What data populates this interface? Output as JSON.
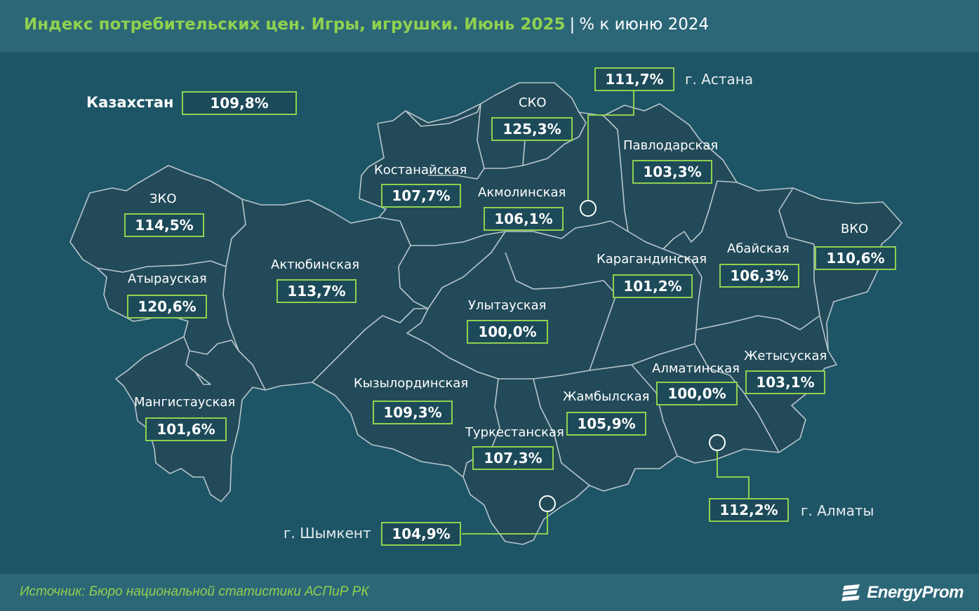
{
  "header": {
    "title": "Индекс потребительских цен. Игры, игрушки. Июнь 2025",
    "separator": "|",
    "unit": "% к июню 2024"
  },
  "country": {
    "label": "Казахстан",
    "value": "109,8%"
  },
  "regions": {
    "zko": {
      "label": "ЗКО",
      "value": "114,5%"
    },
    "atyrau": {
      "label": "Атырауская",
      "value": "120,6%"
    },
    "mangistau": {
      "label": "Мангистауская",
      "value": "101,6%"
    },
    "aktobe": {
      "label": "Актюбинская",
      "value": "113,7%"
    },
    "kostanay": {
      "label": "Костанайская",
      "value": "107,7%"
    },
    "sko": {
      "label": "СКО",
      "value": "125,3%"
    },
    "akmola": {
      "label": "Акмолинская",
      "value": "106,1%"
    },
    "pavlodar": {
      "label": "Павлодарская",
      "value": "103,3%"
    },
    "vko": {
      "label": "ВКО",
      "value": "110,6%"
    },
    "abay": {
      "label": "Абайская",
      "value": "106,3%"
    },
    "karaganda": {
      "label": "Карагандинская",
      "value": "101,2%"
    },
    "ulytau": {
      "label": "Улытауская",
      "value": "100,0%"
    },
    "kyzylorda": {
      "label": "Кызылординская",
      "value": "109,3%"
    },
    "turkestan": {
      "label": "Туркестанская",
      "value": "107,3%"
    },
    "zhambyl": {
      "label": "Жамбылская",
      "value": "105,9%"
    },
    "almaty_obl": {
      "label": "Алматинская",
      "value": "100,0%"
    },
    "zhetysu": {
      "label": "Жетысуская",
      "value": "103,1%"
    }
  },
  "cities": {
    "astana": {
      "label": "г. Астана",
      "value": "111,7%"
    },
    "almaty": {
      "label": "г. Алматы",
      "value": "112,2%"
    },
    "shymkent": {
      "label": "г. Шымкент",
      "value": "104,9%"
    }
  },
  "footer": {
    "source": "Источник: Бюро национальной статистики АСПиР РК",
    "logo_text": "EnergyProm"
  },
  "colors": {
    "background": "#1d5566",
    "header_bar": "#2c6778",
    "accent_green": "#8fd14f",
    "region_fill": "#224a59",
    "region_border": "#b9c6cc"
  }
}
